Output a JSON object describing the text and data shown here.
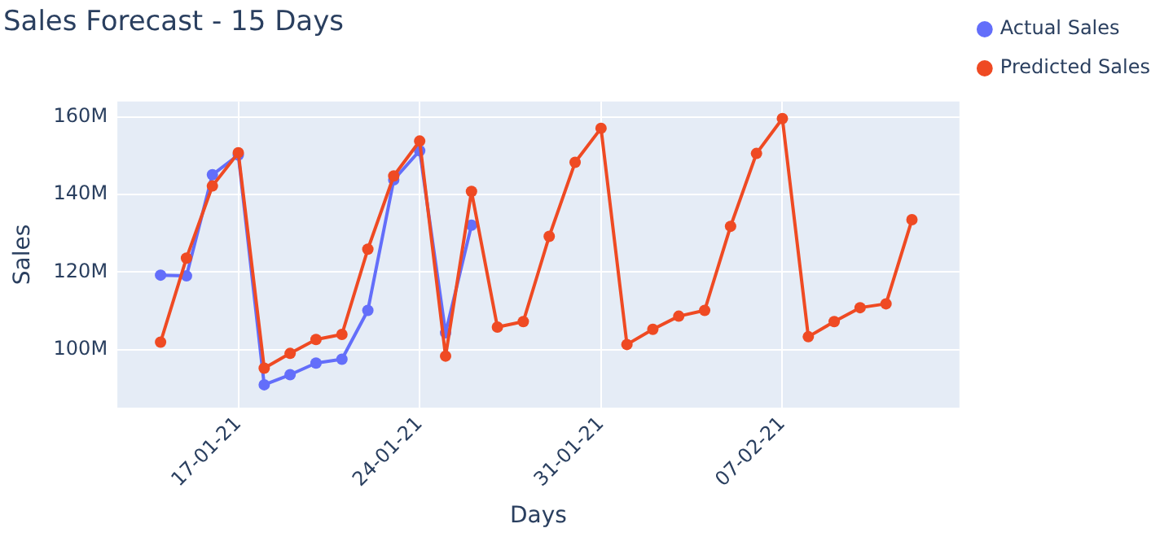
{
  "chart_data": {
    "type": "line",
    "title": "Sales Forecast - 15 Days",
    "xlabel": "Days",
    "ylabel": "Sales",
    "x": [
      "--01-14",
      "--01-15",
      "--01-16",
      "--01-17",
      "--01-18",
      "--01-19",
      "--01-20",
      "--01-21",
      "--01-22",
      "--01-23",
      "--01-24",
      "--01-25",
      "--01-26",
      "--01-27",
      "--01-28",
      "--01-29",
      "--01-30",
      "--01-31",
      "--02-01",
      "--02-02",
      "--02-03",
      "--02-04",
      "--02-05",
      "--02-06",
      "--02-07",
      "--02-08",
      "--02-09",
      "--02-10",
      "--02-11",
      "--02-12"
    ],
    "series": [
      {
        "name": "Actual Sales",
        "color": "#636efa",
        "x": [
          "--01-14",
          "--01-15",
          "--01-16",
          "--01-17",
          "--01-18",
          "--01-19",
          "--01-20",
          "--01-21",
          "--01-22",
          "--01-23",
          "--01-24",
          "--01-25",
          "--01-26"
        ],
        "values": [
          119.2,
          119,
          145.1,
          150.2,
          90.9,
          93.5,
          96.5,
          97.5,
          110.1,
          143.8,
          151.3,
          104.3,
          132.1
        ]
      },
      {
        "name": "Predicted Sales",
        "color": "#ef4a23",
        "values": [
          101.9,
          123.6,
          142.2,
          150.8,
          95.2,
          99,
          102.6,
          103.9,
          125.9,
          144.8,
          153.8,
          98.3,
          140.8,
          105.8,
          107.2,
          129.2,
          148.3,
          157.1,
          101.3,
          105.2,
          108.6,
          110.1,
          131.8,
          150.6,
          159.6,
          103.3,
          107.2,
          110.8,
          111.8,
          133.5
        ]
      }
    ],
    "xlim": [
      "--01-12T08:00",
      "--02-13T20:00"
    ],
    "xticks": [
      {
        "value": "--01-17",
        "label": "17-01-21"
      },
      {
        "value": "--01-24",
        "label": "24-01-21"
      },
      {
        "value": "--01-31",
        "label": "31-01-21"
      },
      {
        "value": "--02-07",
        "label": "07-02-21"
      }
    ],
    "ylim": [
      85,
      164
    ],
    "yticks": [
      {
        "value": 100,
        "label": "100M"
      },
      {
        "value": 120,
        "label": "120M"
      },
      {
        "value": 140,
        "label": "140M"
      },
      {
        "value": 160,
        "label": "160M"
      }
    ],
    "grid": true,
    "legend": "top right",
    "marker": "circle",
    "line_style": "solid"
  }
}
